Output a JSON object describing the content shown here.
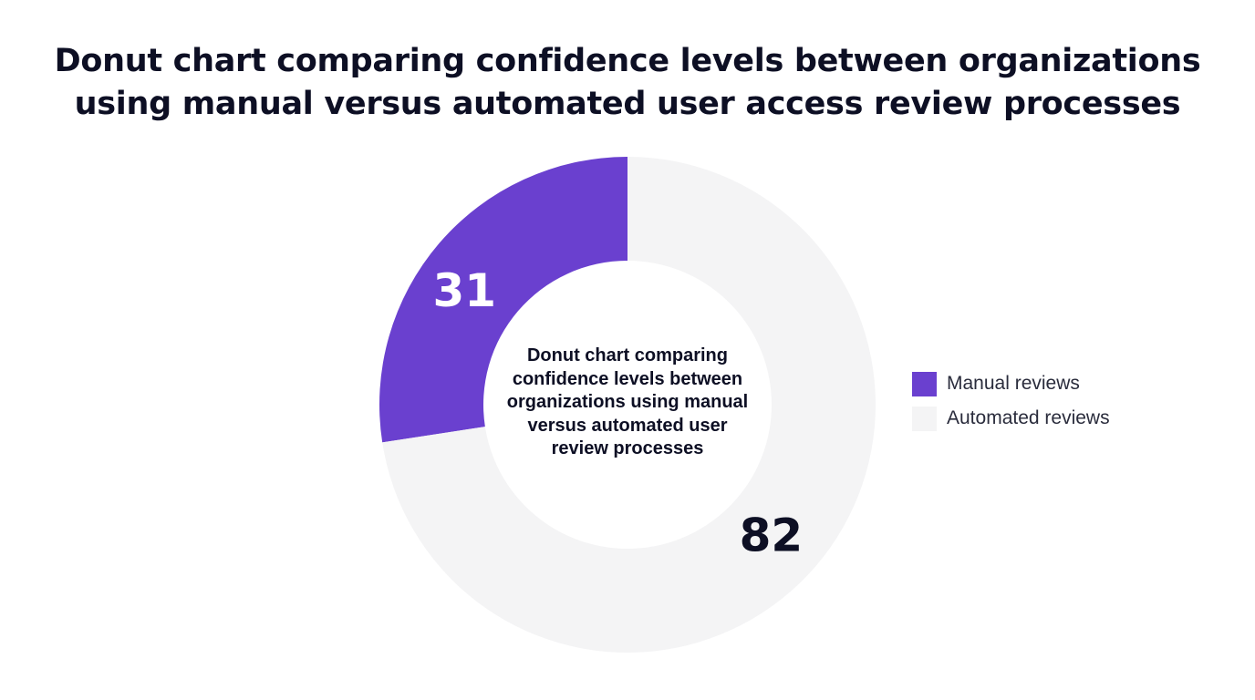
{
  "title_lines": [
    "Donut chart comparing confidence levels between organizations",
    "using manual versus automated user access review processes"
  ],
  "center_label_lines": [
    "Donut chart comparing",
    "confidence levels between",
    "organizations using manual",
    "versus automated user",
    "review processes"
  ],
  "colors": {
    "manual": "#6a40cf",
    "automated": "#f4f4f5",
    "label_on_dark": "#ffffff",
    "label_on_light": "#0d0f24"
  },
  "legend": {
    "items": [
      {
        "label": "Manual reviews",
        "color": "#6a40cf"
      },
      {
        "label": "Automated reviews",
        "color": "#f4f4f5"
      }
    ]
  },
  "chart_data": {
    "type": "pie",
    "variant": "donut",
    "title": "Donut chart comparing confidence levels between organizations using manual versus automated user access review processes",
    "center_text": "Donut chart comparing confidence levels between organizations using manual versus automated user review processes",
    "categories": [
      "Manual reviews",
      "Automated reviews"
    ],
    "values": [
      31,
      82
    ],
    "data_labels": [
      "31",
      "82"
    ],
    "legend_position": "right",
    "grid": false
  }
}
